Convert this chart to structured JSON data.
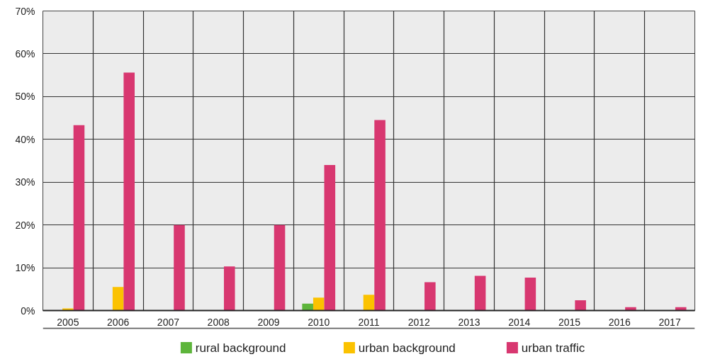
{
  "chart_data": {
    "type": "bar",
    "categories": [
      "2005",
      "2006",
      "2007",
      "2008",
      "2009",
      "2010",
      "2011",
      "2012",
      "2013",
      "2014",
      "2015",
      "2016",
      "2017"
    ],
    "series": [
      {
        "name": "rural background",
        "color": "#5db53b",
        "values": [
          null,
          null,
          null,
          null,
          null,
          1.6,
          null,
          null,
          null,
          null,
          null,
          null,
          null
        ]
      },
      {
        "name": "urban background",
        "color": "#fbc200",
        "values": [
          0.5,
          5.5,
          null,
          null,
          null,
          3,
          3.7,
          null,
          null,
          null,
          null,
          null,
          null
        ]
      },
      {
        "name": "urban traffic",
        "color": "#d83770",
        "values": [
          43.3,
          55.6,
          20,
          10.3,
          20,
          34,
          44.5,
          6.6,
          8.1,
          7.7,
          2.4,
          0.8,
          0.8
        ]
      }
    ],
    "ylim": [
      0,
      70
    ],
    "yticks": [
      {
        "value": 0,
        "label": "0%"
      },
      {
        "value": 10,
        "label": "10%"
      },
      {
        "value": 20,
        "label": "20%"
      },
      {
        "value": 30,
        "label": "30%"
      },
      {
        "value": 40,
        "label": "40%"
      },
      {
        "value": 50,
        "label": "50%"
      },
      {
        "value": 60,
        "label": "60%"
      },
      {
        "value": 70,
        "label": "70%"
      }
    ],
    "grid": true,
    "legend": "bottom"
  }
}
